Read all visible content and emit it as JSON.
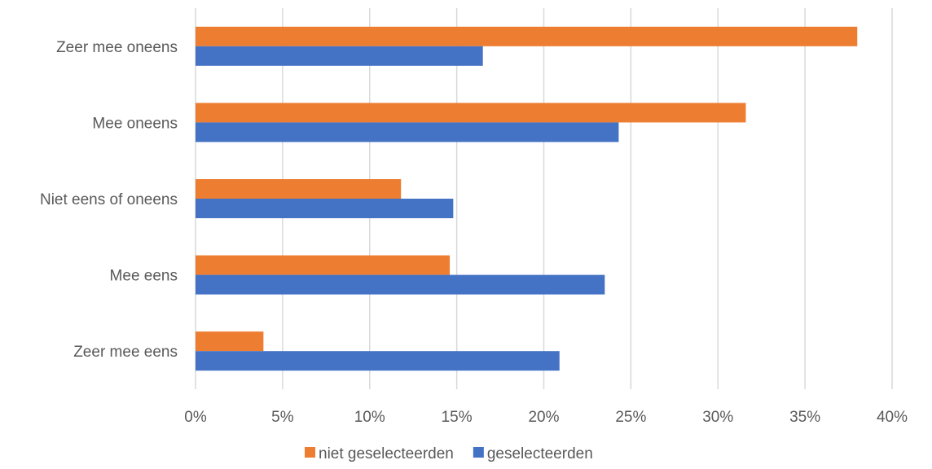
{
  "chart_data": {
    "type": "bar",
    "orientation": "horizontal",
    "categories": [
      "Zeer mee oneens",
      "Mee oneens",
      "Niet eens of oneens",
      "Mee eens",
      "Zeer mee eens"
    ],
    "series": [
      {
        "name": "niet geselecteerden",
        "color": "#ed7d31",
        "values": [
          38.0,
          31.6,
          11.8,
          14.6,
          3.9
        ]
      },
      {
        "name": "geselecteerden",
        "color": "#4472c4",
        "values": [
          16.5,
          24.3,
          14.8,
          23.5,
          20.9
        ]
      }
    ],
    "x_ticks": [
      "0%",
      "5%",
      "10%",
      "15%",
      "20%",
      "25%",
      "30%",
      "35%",
      "40%"
    ],
    "xlim": [
      0,
      40
    ],
    "unit": "%",
    "grid": true,
    "legend_position": "bottom"
  }
}
